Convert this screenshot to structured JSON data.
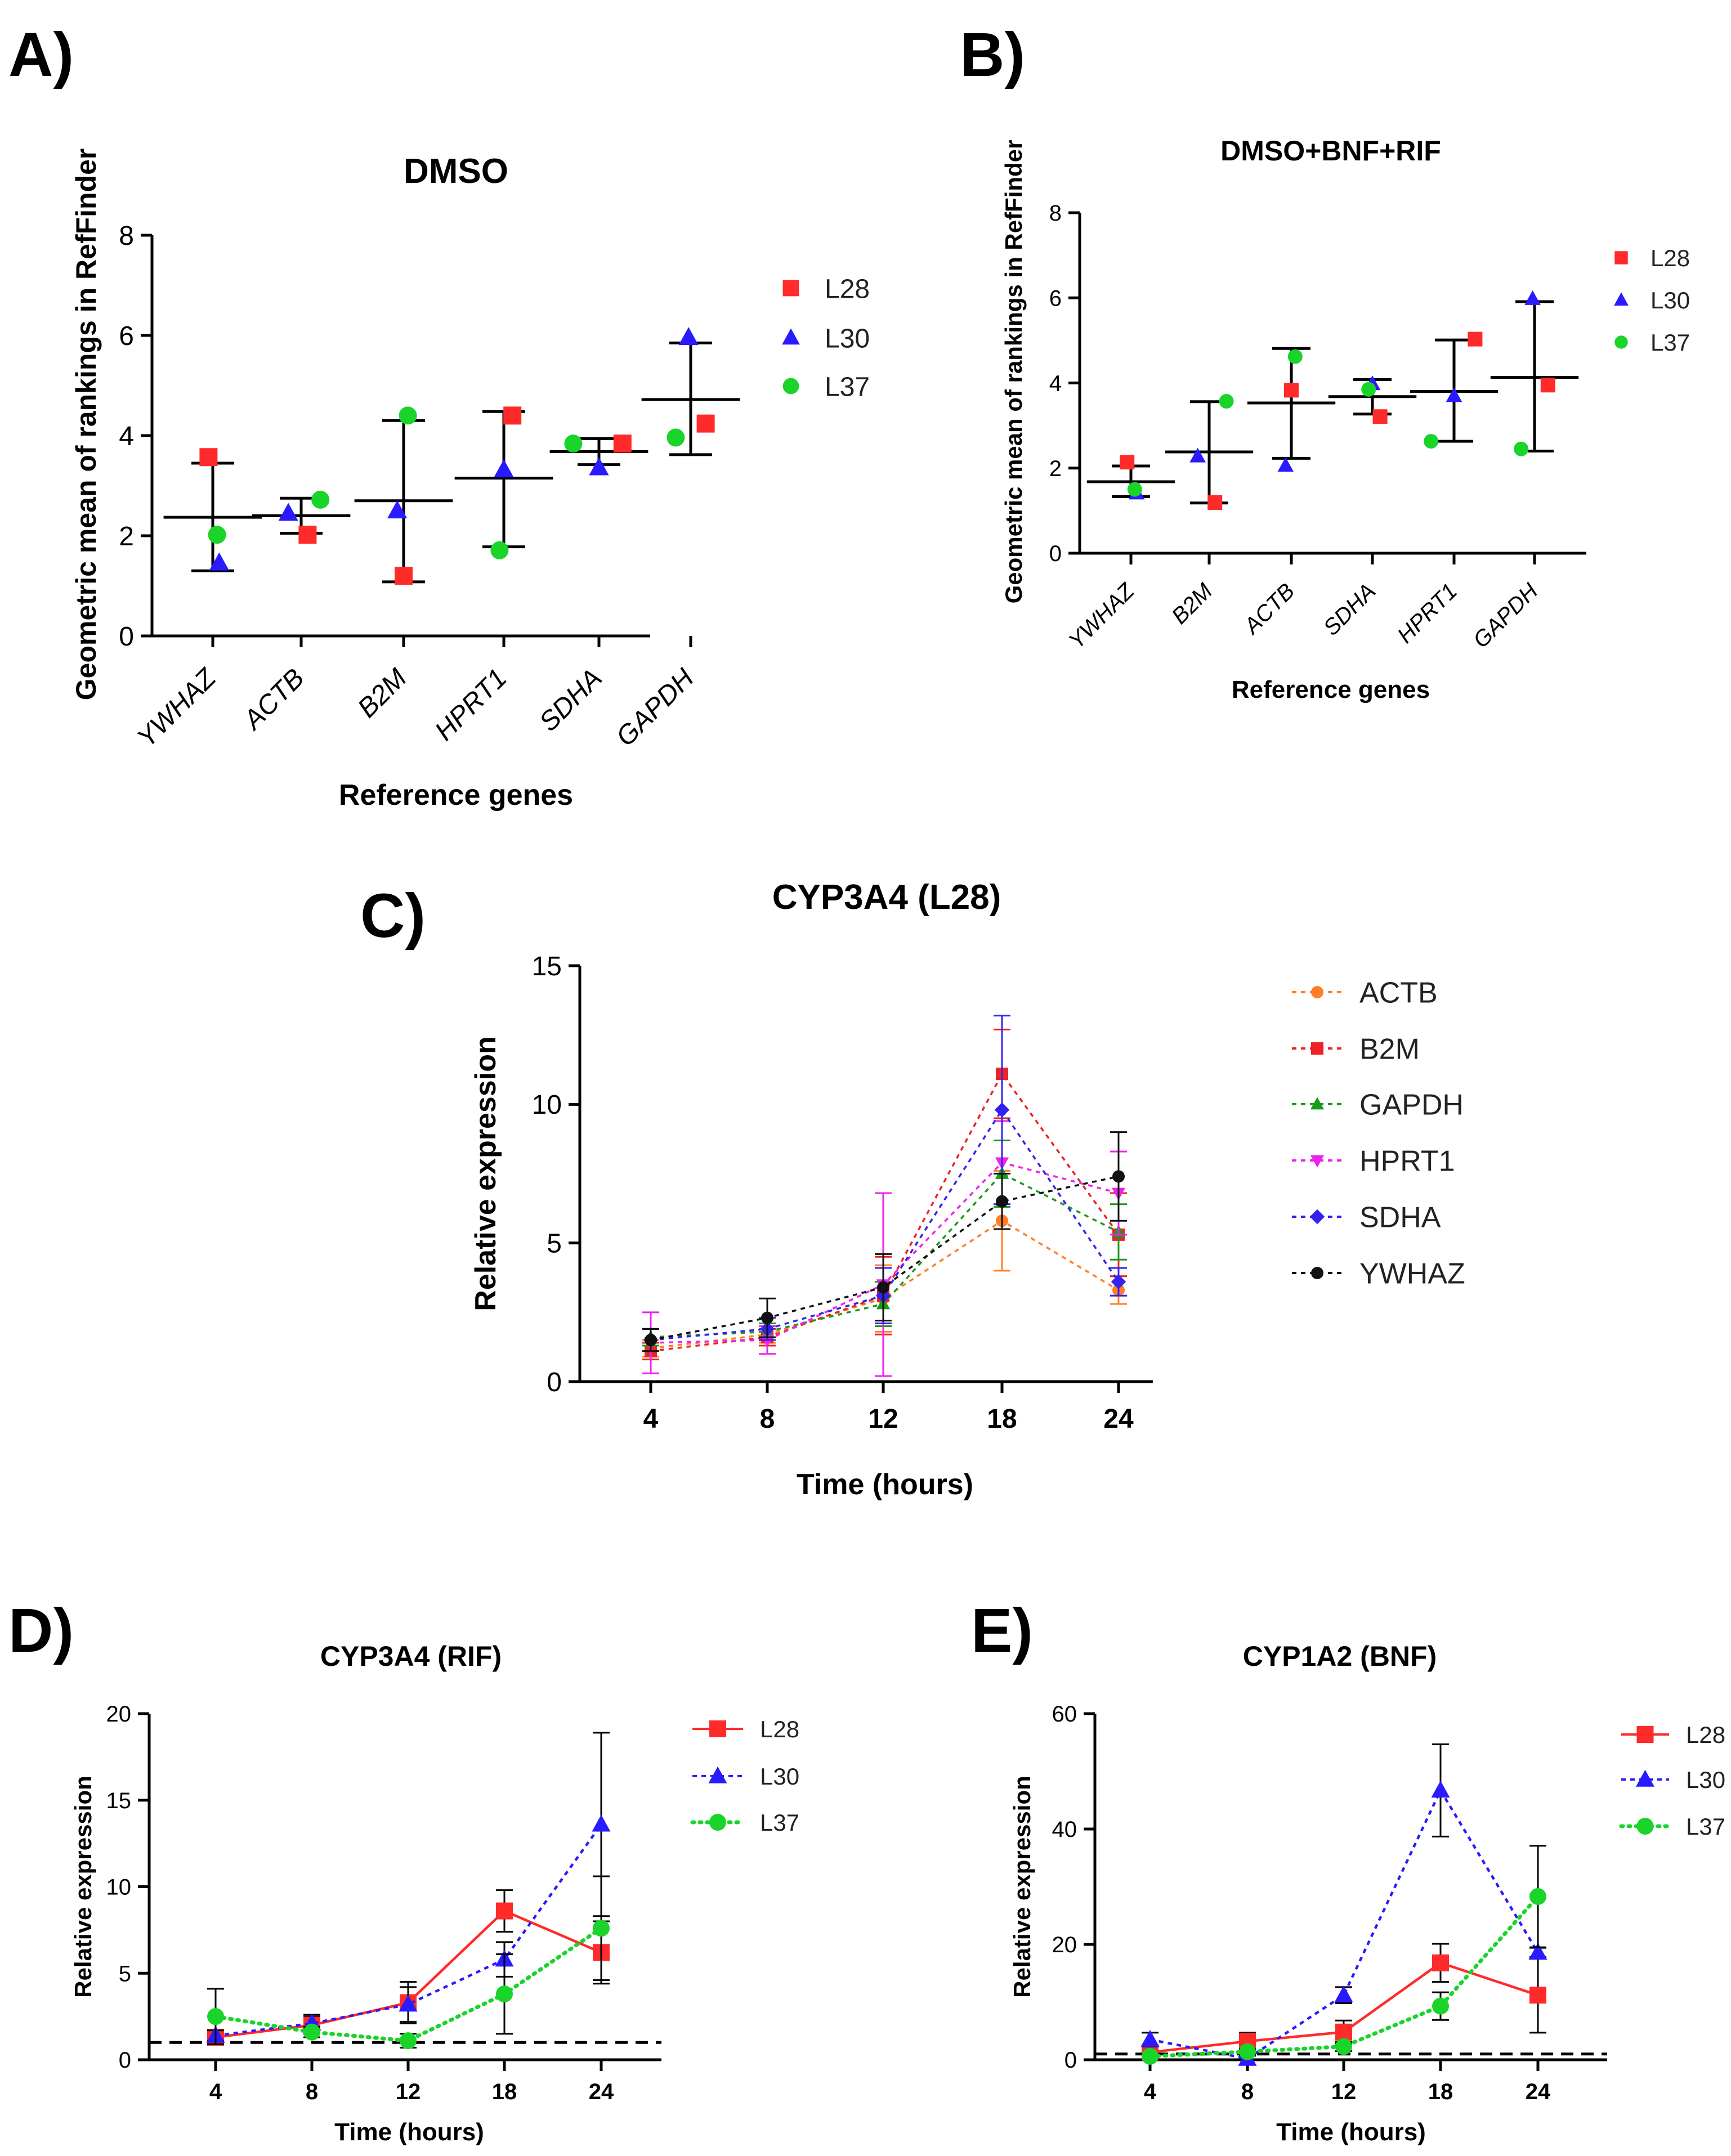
{
  "colors": {
    "L28": "#ff2a2a",
    "L30": "#2a1aff",
    "L37": "#1ad42a",
    "ACTB": "#ff7f27",
    "B2M": "#ee2222",
    "GAPDH": "#1a9a1a",
    "HPRT1": "#ee22ee",
    "SDHA": "#3322ee",
    "YWHAZ": "#111111"
  },
  "chart_data": [
    {
      "id": "A",
      "type": "scatter",
      "panel_label": "A)",
      "title": "DMSO",
      "xlabel": "Reference genes",
      "ylabel": "Geometric mean of rankings in RefFinder",
      "categories": [
        "YWHAZ",
        "ACTB",
        "B2M",
        "HPRT1",
        "SDHA",
        "GAPDH"
      ],
      "ylim": [
        0,
        8
      ],
      "yticks": [
        "0",
        "2",
        "4",
        "6",
        "8"
      ],
      "legend": [
        "L28",
        "L30",
        "L37"
      ],
      "series": [
        {
          "name": "L28",
          "values": [
            3.57,
            2.02,
            1.2,
            4.4,
            3.84,
            4.24
          ]
        },
        {
          "name": "L30",
          "values": [
            1.46,
            2.45,
            2.5,
            3.32,
            3.36,
            5.96
          ]
        },
        {
          "name": "L37",
          "values": [
            2.02,
            2.72,
            4.4,
            1.71,
            3.84,
            3.96
          ]
        }
      ],
      "mean": [
        2.37,
        2.4,
        2.7,
        3.15,
        3.68,
        4.72
      ],
      "sd_low": [
        1.3,
        2.05,
        1.08,
        1.78,
        3.42,
        3.62
      ],
      "sd_high": [
        3.45,
        2.75,
        4.3,
        4.48,
        3.94,
        5.85
      ]
    },
    {
      "id": "B",
      "type": "scatter",
      "panel_label": "B)",
      "title": "DMSO+BNF+RIF",
      "xlabel": "Reference genes",
      "ylabel": "Geometric mean of rankings in RefFinder",
      "categories": [
        "YWHAZ",
        "B2M",
        "ACTB",
        "SDHA",
        "HPRT1",
        "GAPDH"
      ],
      "ylim": [
        0,
        8
      ],
      "yticks": [
        "0",
        "2",
        "4",
        "6",
        "8"
      ],
      "legend": [
        "L28",
        "L30",
        "L37"
      ],
      "series": [
        {
          "name": "L28",
          "values": [
            2.14,
            1.19,
            3.83,
            3.21,
            5.03,
            3.95
          ]
        },
        {
          "name": "L30",
          "values": [
            1.41,
            2.28,
            2.06,
            3.98,
            3.7,
            5.98
          ]
        },
        {
          "name": "L37",
          "values": [
            1.5,
            3.57,
            4.62,
            3.85,
            2.63,
            2.45
          ]
        }
      ],
      "mean": [
        1.68,
        2.38,
        3.53,
        3.68,
        3.8,
        4.13
      ],
      "sd_low": [
        1.33,
        1.18,
        2.23,
        3.27,
        2.63,
        2.4
      ],
      "sd_high": [
        2.05,
        3.56,
        4.81,
        4.08,
        5.01,
        5.91
      ]
    },
    {
      "id": "C",
      "type": "line",
      "panel_label": "C)",
      "title": "CYP3A4 (L28)",
      "xlabel": "Time (hours)",
      "ylabel": "Relative expression",
      "x": [
        "4",
        "8",
        "12",
        "18",
        "24"
      ],
      "ylim": [
        0,
        15
      ],
      "yticks": [
        "0",
        "5",
        "10",
        "15"
      ],
      "series": [
        {
          "name": "ACTB",
          "values": [
            1.2,
            1.7,
            3.0,
            5.8,
            3.3
          ],
          "err": [
            0.3,
            0.3,
            1.2,
            1.8,
            0.5
          ],
          "marker": "circle",
          "dash": "8,8"
        },
        {
          "name": "B2M",
          "values": [
            1.1,
            1.6,
            3.1,
            11.1,
            5.3
          ],
          "err": [
            0.3,
            0.3,
            1.4,
            1.6,
            1.5
          ],
          "marker": "square",
          "dash": "8,8"
        },
        {
          "name": "GAPDH",
          "values": [
            1.6,
            1.8,
            2.8,
            7.5,
            5.4
          ],
          "err": [
            0.3,
            0.3,
            0.8,
            1.2,
            1.0
          ],
          "marker": "triangle",
          "dash": "8,8"
        },
        {
          "name": "HPRT1",
          "values": [
            1.4,
            1.5,
            3.5,
            7.9,
            6.8
          ],
          "err": [
            1.1,
            0.5,
            3.3,
            1.5,
            1.5
          ],
          "marker": "triangle-down",
          "dash": "8,8"
        },
        {
          "name": "SDHA",
          "values": [
            1.5,
            1.9,
            3.1,
            9.8,
            3.6
          ],
          "err": [
            0.4,
            0.4,
            1.0,
            3.4,
            0.5
          ],
          "marker": "diamond",
          "dash": "8,8"
        },
        {
          "name": "YWHAZ",
          "values": [
            1.5,
            2.3,
            3.4,
            6.5,
            7.4
          ],
          "err": [
            0.4,
            0.7,
            1.2,
            1.0,
            1.6
          ],
          "marker": "circle",
          "dash": "8,8"
        }
      ]
    },
    {
      "id": "D",
      "type": "line",
      "panel_label": "D)",
      "title": "CYP3A4 (RIF)",
      "xlabel": "Time (hours)",
      "ylabel": "Relative expression",
      "x": [
        "4",
        "8",
        "12",
        "18",
        "24"
      ],
      "ylim": [
        0,
        20
      ],
      "yticks": [
        "0",
        "5",
        "10",
        "15",
        "20"
      ],
      "reference_line": 1,
      "series": [
        {
          "name": "L28",
          "values": [
            1.3,
            2.0,
            3.3,
            8.6,
            6.2
          ],
          "err": [
            0.3,
            0.5,
            1.2,
            1.2,
            1.8
          ],
          "marker": "square",
          "dash": ""
        },
        {
          "name": "L30",
          "values": [
            1.4,
            2.1,
            3.2,
            5.8,
            13.6
          ],
          "err": [
            0.3,
            0.5,
            1.0,
            1.0,
            5.3
          ],
          "marker": "triangle",
          "dash": "8,8"
        },
        {
          "name": "L37",
          "values": [
            2.5,
            1.6,
            1.1,
            3.8,
            7.6
          ],
          "err": [
            1.6,
            0.3,
            0.4,
            2.3,
            3.0
          ],
          "marker": "circle",
          "dash": "3,10"
        }
      ]
    },
    {
      "id": "E",
      "type": "line",
      "panel_label": "E)",
      "title": "CYP1A2 (BNF)",
      "xlabel": "Time (hours)",
      "ylabel": "Relative expression",
      "x": [
        "4",
        "8",
        "12",
        "18",
        "24"
      ],
      "ylim": [
        0,
        60
      ],
      "yticks": [
        "0",
        "20",
        "40",
        "60"
      ],
      "reference_line": 1,
      "series": [
        {
          "name": "L28",
          "values": [
            1.3,
            3.2,
            4.8,
            16.8,
            11.2
          ],
          "err": [
            0.8,
            1.5,
            2.0,
            3.3,
            6.5
          ],
          "marker": "square",
          "dash": ""
        },
        {
          "name": "L30",
          "values": [
            3.5,
            0.2,
            11.2,
            46.7,
            18.6
          ],
          "err": [
            1.2,
            0.5,
            1.4,
            8.0,
            0.8
          ],
          "marker": "triangle",
          "dash": "8,8"
        },
        {
          "name": "L37",
          "values": [
            0.6,
            1.4,
            2.3,
            9.3,
            28.3
          ],
          "err": [
            0.4,
            0.5,
            0.8,
            2.4,
            8.8
          ],
          "marker": "circle",
          "dash": "3,10"
        }
      ]
    }
  ]
}
